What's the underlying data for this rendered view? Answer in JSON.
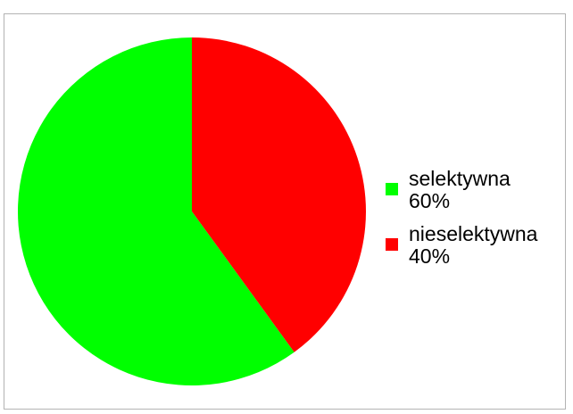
{
  "chart_data": {
    "type": "pie",
    "categories": [
      "selektywna",
      "nieselektywna"
    ],
    "values": [
      60,
      40
    ],
    "colors": [
      "#00ff00",
      "#ff0000"
    ],
    "value_labels": [
      "60%",
      "40%"
    ],
    "legend_position": "right",
    "title": ""
  }
}
